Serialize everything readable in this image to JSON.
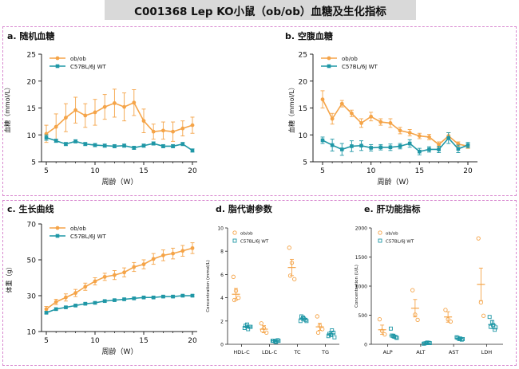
{
  "page": {
    "title": "C001368 Lep KO小鼠（ob/ob）血糖及生化指标"
  },
  "colors": {
    "obob": "#F5A448",
    "wt": "#1F97A6",
    "axis": "#222222",
    "border": "#D98AD0"
  },
  "chart_data": [
    {
      "id": "a",
      "type": "line",
      "title": "a. 随机血糖",
      "xlabel": "周龄（W）",
      "ylabel": "血糖（mmol/L）",
      "xlim": [
        5,
        20
      ],
      "ylim": [
        5,
        25
      ],
      "xticks": [
        5,
        10,
        15,
        20
      ],
      "yticks": [
        5,
        10,
        15,
        20,
        25
      ],
      "legend_position": "top-left",
      "x": [
        5,
        6,
        7,
        8,
        9,
        10,
        11,
        12,
        13,
        14,
        15,
        16,
        17,
        18,
        19,
        20
      ],
      "series": [
        {
          "name": "ob/ob",
          "values": [
            10.2,
            11.5,
            13.2,
            14.6,
            13.6,
            14.2,
            15.2,
            15.9,
            15.2,
            16.0,
            12.6,
            10.6,
            10.8,
            10.6,
            11.2,
            11.8
          ],
          "errors": [
            1.6,
            2.4,
            2.6,
            2.4,
            2.2,
            2.4,
            2.3,
            2.6,
            2.6,
            2.4,
            2.2,
            1.4,
            1.6,
            1.8,
            1.4,
            1.5
          ]
        },
        {
          "name": "C57BL/6J WT",
          "values": [
            9.5,
            8.9,
            8.3,
            8.8,
            8.3,
            8.1,
            8.0,
            7.9,
            8.0,
            7.6,
            8.0,
            8.4,
            7.9,
            7.9,
            8.3,
            7.1
          ],
          "errors": [
            0.5,
            0.3,
            0.3,
            0.3,
            0.3,
            0.3,
            0.3,
            0.3,
            0.3,
            0.3,
            0.3,
            0.3,
            0.3,
            0.3,
            0.3,
            0.3
          ]
        }
      ]
    },
    {
      "id": "b",
      "type": "line",
      "title": "b. 空腹血糖",
      "xlabel": "周龄（W）",
      "ylabel": "血糖（mmol/L）",
      "xlim": [
        5,
        20
      ],
      "ylim": [
        5,
        25
      ],
      "xticks": [
        5,
        10,
        15,
        20
      ],
      "yticks": [
        5,
        10,
        15,
        20,
        25
      ],
      "legend_position": "top-left",
      "x": [
        5,
        6,
        7,
        8,
        9,
        10,
        11,
        12,
        13,
        14,
        15,
        16,
        17,
        18,
        19,
        20
      ],
      "series": [
        {
          "name": "ob/ob",
          "values": [
            16.6,
            13.0,
            15.8,
            14.0,
            12.2,
            13.4,
            12.4,
            12.2,
            10.8,
            10.4,
            9.8,
            9.6,
            8.2,
            9.8,
            8.3,
            7.9
          ],
          "errors": [
            1.6,
            1.0,
            0.6,
            0.6,
            0.8,
            0.8,
            0.6,
            0.8,
            0.6,
            0.6,
            0.5,
            0.5,
            0.5,
            0.6,
            0.4,
            0.4
          ]
        },
        {
          "name": "C57BL/6J WT",
          "values": [
            9.0,
            8.1,
            7.3,
            7.9,
            8.0,
            7.6,
            7.7,
            7.7,
            7.9,
            8.4,
            6.9,
            7.3,
            7.3,
            9.4,
            7.4,
            8.1
          ],
          "errors": [
            0.6,
            1.1,
            1.1,
            1.0,
            0.9,
            0.6,
            0.5,
            0.6,
            0.5,
            0.7,
            0.6,
            0.5,
            0.6,
            1.0,
            0.7,
            0.5
          ]
        }
      ]
    },
    {
      "id": "c",
      "type": "line",
      "title": "c. 生长曲线",
      "xlabel": "周龄（W）",
      "ylabel": "体重（g）",
      "xlim": [
        5,
        20
      ],
      "ylim": [
        10,
        70
      ],
      "xticks": [
        5,
        10,
        15,
        20
      ],
      "yticks": [
        10,
        30,
        50,
        70
      ],
      "legend_position": "top-left",
      "x": [
        5,
        6,
        7,
        8,
        9,
        10,
        11,
        12,
        13,
        14,
        15,
        16,
        17,
        18,
        19,
        20
      ],
      "series": [
        {
          "name": "ob/ob",
          "values": [
            22.5,
            26.5,
            29.0,
            31.5,
            35.0,
            38.0,
            40.5,
            41.5,
            43.0,
            46.0,
            47.5,
            50.5,
            52.5,
            53.5,
            55.0,
            56.5
          ],
          "errors": [
            1.5,
            1.5,
            2.0,
            2.0,
            2.0,
            2.0,
            2.0,
            2.5,
            2.5,
            2.5,
            2.5,
            3.0,
            3.0,
            3.0,
            3.0,
            3.0
          ]
        },
        {
          "name": "C57BL/6J WT",
          "values": [
            20.5,
            22.5,
            23.5,
            24.5,
            25.5,
            26.0,
            27.0,
            27.5,
            28.0,
            28.5,
            29.0,
            29.0,
            29.5,
            29.5,
            30.0,
            30.0
          ],
          "errors": [
            0.6,
            0.6,
            0.6,
            0.6,
            0.6,
            0.6,
            0.6,
            0.6,
            0.6,
            0.6,
            0.6,
            0.6,
            0.6,
            0.6,
            0.6,
            0.6
          ]
        }
      ]
    },
    {
      "id": "d",
      "type": "scatter",
      "title": "d. 脂代谢参数",
      "ylabel": "Concentration (mmol/L)",
      "ylim": [
        0,
        10
      ],
      "yticks": [
        0,
        2,
        4,
        6,
        8,
        10
      ],
      "categories": [
        "HDL-C",
        "LDL-C",
        "TC",
        "TG"
      ],
      "legend_position": "top-left",
      "series": [
        {
          "name": "ob/ob",
          "marker": "circle",
          "means": [
            4.3,
            1.3,
            6.6,
            1.5
          ],
          "errors": [
            0.5,
            0.3,
            0.7,
            0.3
          ],
          "points": [
            [
              5.8,
              4.6,
              4.0,
              3.8
            ],
            [
              1.8,
              1.4,
              1.0,
              1.2
            ],
            [
              8.3,
              7.0,
              5.6,
              5.9
            ],
            [
              2.4,
              1.6,
              1.3,
              1.0
            ]
          ]
        },
        {
          "name": "C57BL/6J WT",
          "marker": "square",
          "means": [
            1.5,
            0.3,
            2.2,
            0.9
          ],
          "errors": [
            0.1,
            0.05,
            0.15,
            0.2
          ],
          "points": [
            [
              1.4,
              1.7,
              1.5,
              1.6,
              1.3,
              1.5
            ],
            [
              0.3,
              0.25,
              0.35,
              0.3,
              0.2,
              0.3
            ],
            [
              2.0,
              2.3,
              2.1,
              2.4,
              2.2,
              2.0
            ],
            [
              0.7,
              0.8,
              1.0,
              0.9,
              1.2,
              0.6
            ]
          ]
        }
      ]
    },
    {
      "id": "e",
      "type": "scatter",
      "title": "e. 肝功能指标",
      "ylabel": "Concentration (U/L)",
      "ylim": [
        0,
        2000
      ],
      "yticks": [
        0,
        500,
        1000,
        1500,
        2000
      ],
      "categories": [
        "ALP",
        "ALT",
        "AST",
        "LDH"
      ],
      "legend_position": "top-left",
      "series": [
        {
          "name": "ob/ob",
          "marker": "circle",
          "means": [
            250,
            620,
            470,
            1030
          ],
          "errors": [
            80,
            150,
            90,
            280
          ],
          "points": [
            [
              430,
              230,
              170
            ],
            [
              930,
              510,
              420
            ],
            [
              590,
              430,
              390
            ],
            [
              1820,
              720,
              490
            ]
          ]
        },
        {
          "name": "C57BL/6J WT",
          "marker": "square",
          "means": [
            150,
            20,
            100,
            340
          ],
          "errors": [
            25,
            5,
            20,
            70
          ],
          "points": [
            [
              270,
              140,
              120,
              150,
              130,
              110
            ],
            [
              10,
              20,
              25,
              15,
              30,
              20
            ],
            [
              120,
              90,
              80,
              110,
              100,
              90
            ],
            [
              470,
              380,
              250,
              300,
              330,
              290
            ]
          ]
        }
      ]
    }
  ]
}
